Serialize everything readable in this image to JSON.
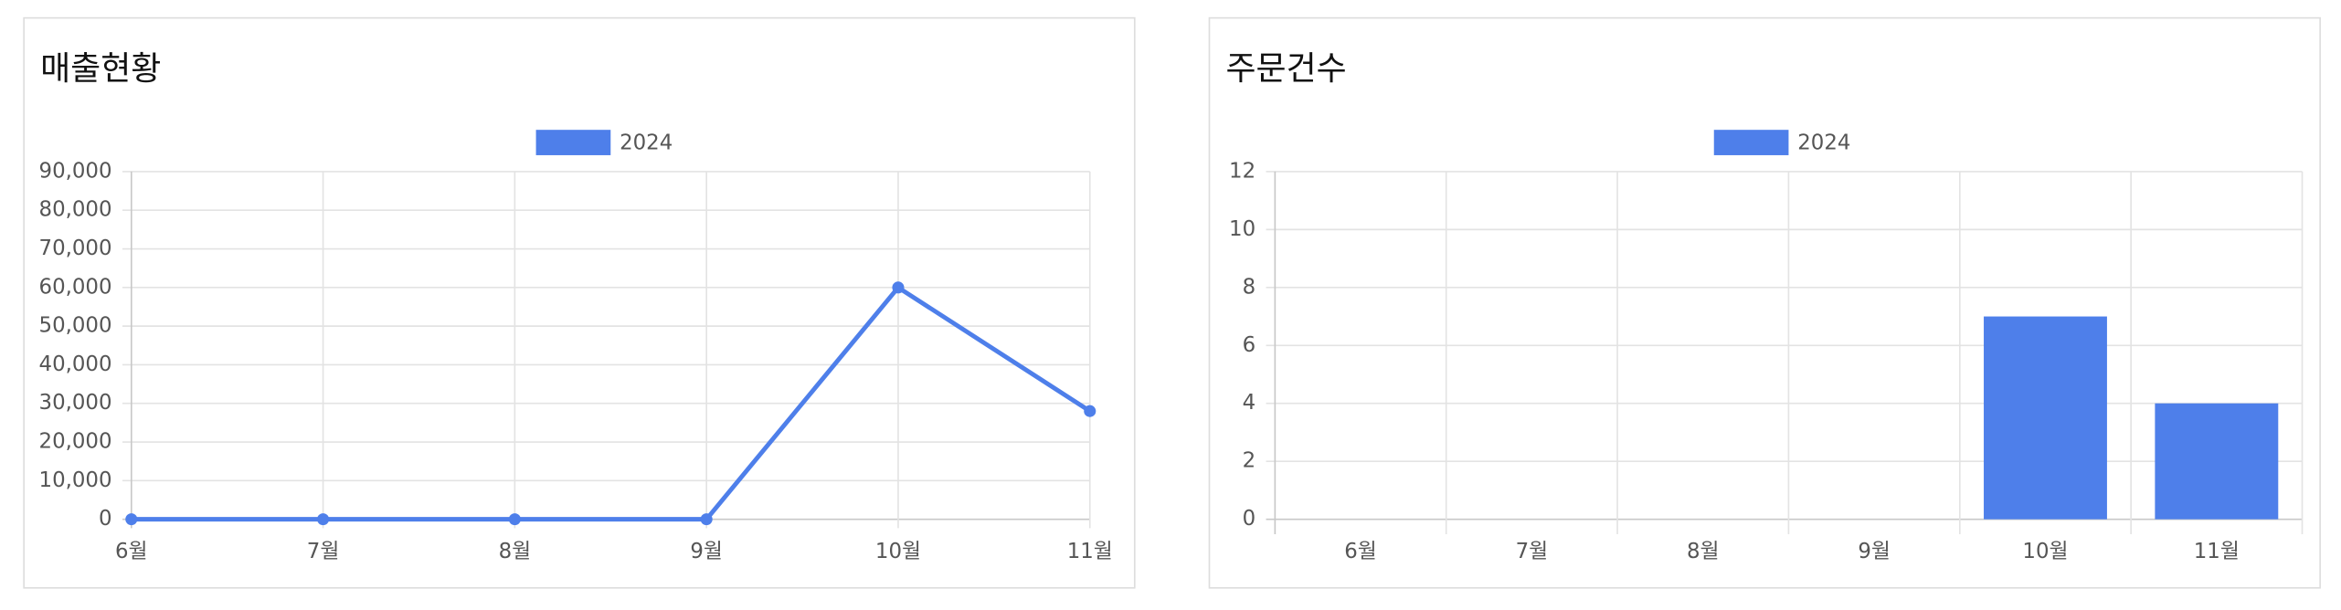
{
  "chart_data": [
    {
      "type": "line",
      "title": "매출현황",
      "categories": [
        "6월",
        "7월",
        "8월",
        "9월",
        "10월",
        "11월"
      ],
      "series": [
        {
          "name": "2024",
          "color": "#4e7fea",
          "values": [
            0,
            0,
            0,
            0,
            60000,
            28000
          ]
        }
      ],
      "ylim": [
        0,
        90000
      ],
      "yticks": [
        0,
        {
          "value": 10000,
          "label": "10,000"
        },
        {
          "value": 20000,
          "label": "20,000"
        },
        {
          "value": 30000,
          "label": "30,000"
        },
        {
          "value": 40000,
          "label": "40,000"
        },
        {
          "value": 50000,
          "label": "50,000"
        },
        {
          "value": 60000,
          "label": "60,000"
        },
        {
          "value": 70000,
          "label": "70,000"
        },
        {
          "value": 80000,
          "label": "80,000"
        },
        {
          "value": 90000,
          "label": "90,000"
        }
      ],
      "grid": true,
      "legend": "top"
    },
    {
      "type": "bar",
      "title": "주문건수",
      "categories": [
        "6월",
        "7월",
        "8월",
        "9월",
        "10월",
        "11월"
      ],
      "series": [
        {
          "name": "2024",
          "color": "#4e7fea",
          "values": [
            0,
            0,
            0,
            0,
            7,
            4
          ]
        }
      ],
      "ylim": [
        0,
        12
      ],
      "yticks": [
        0,
        2,
        4,
        6,
        8,
        10,
        12
      ],
      "grid": true,
      "legend": "top"
    }
  ]
}
